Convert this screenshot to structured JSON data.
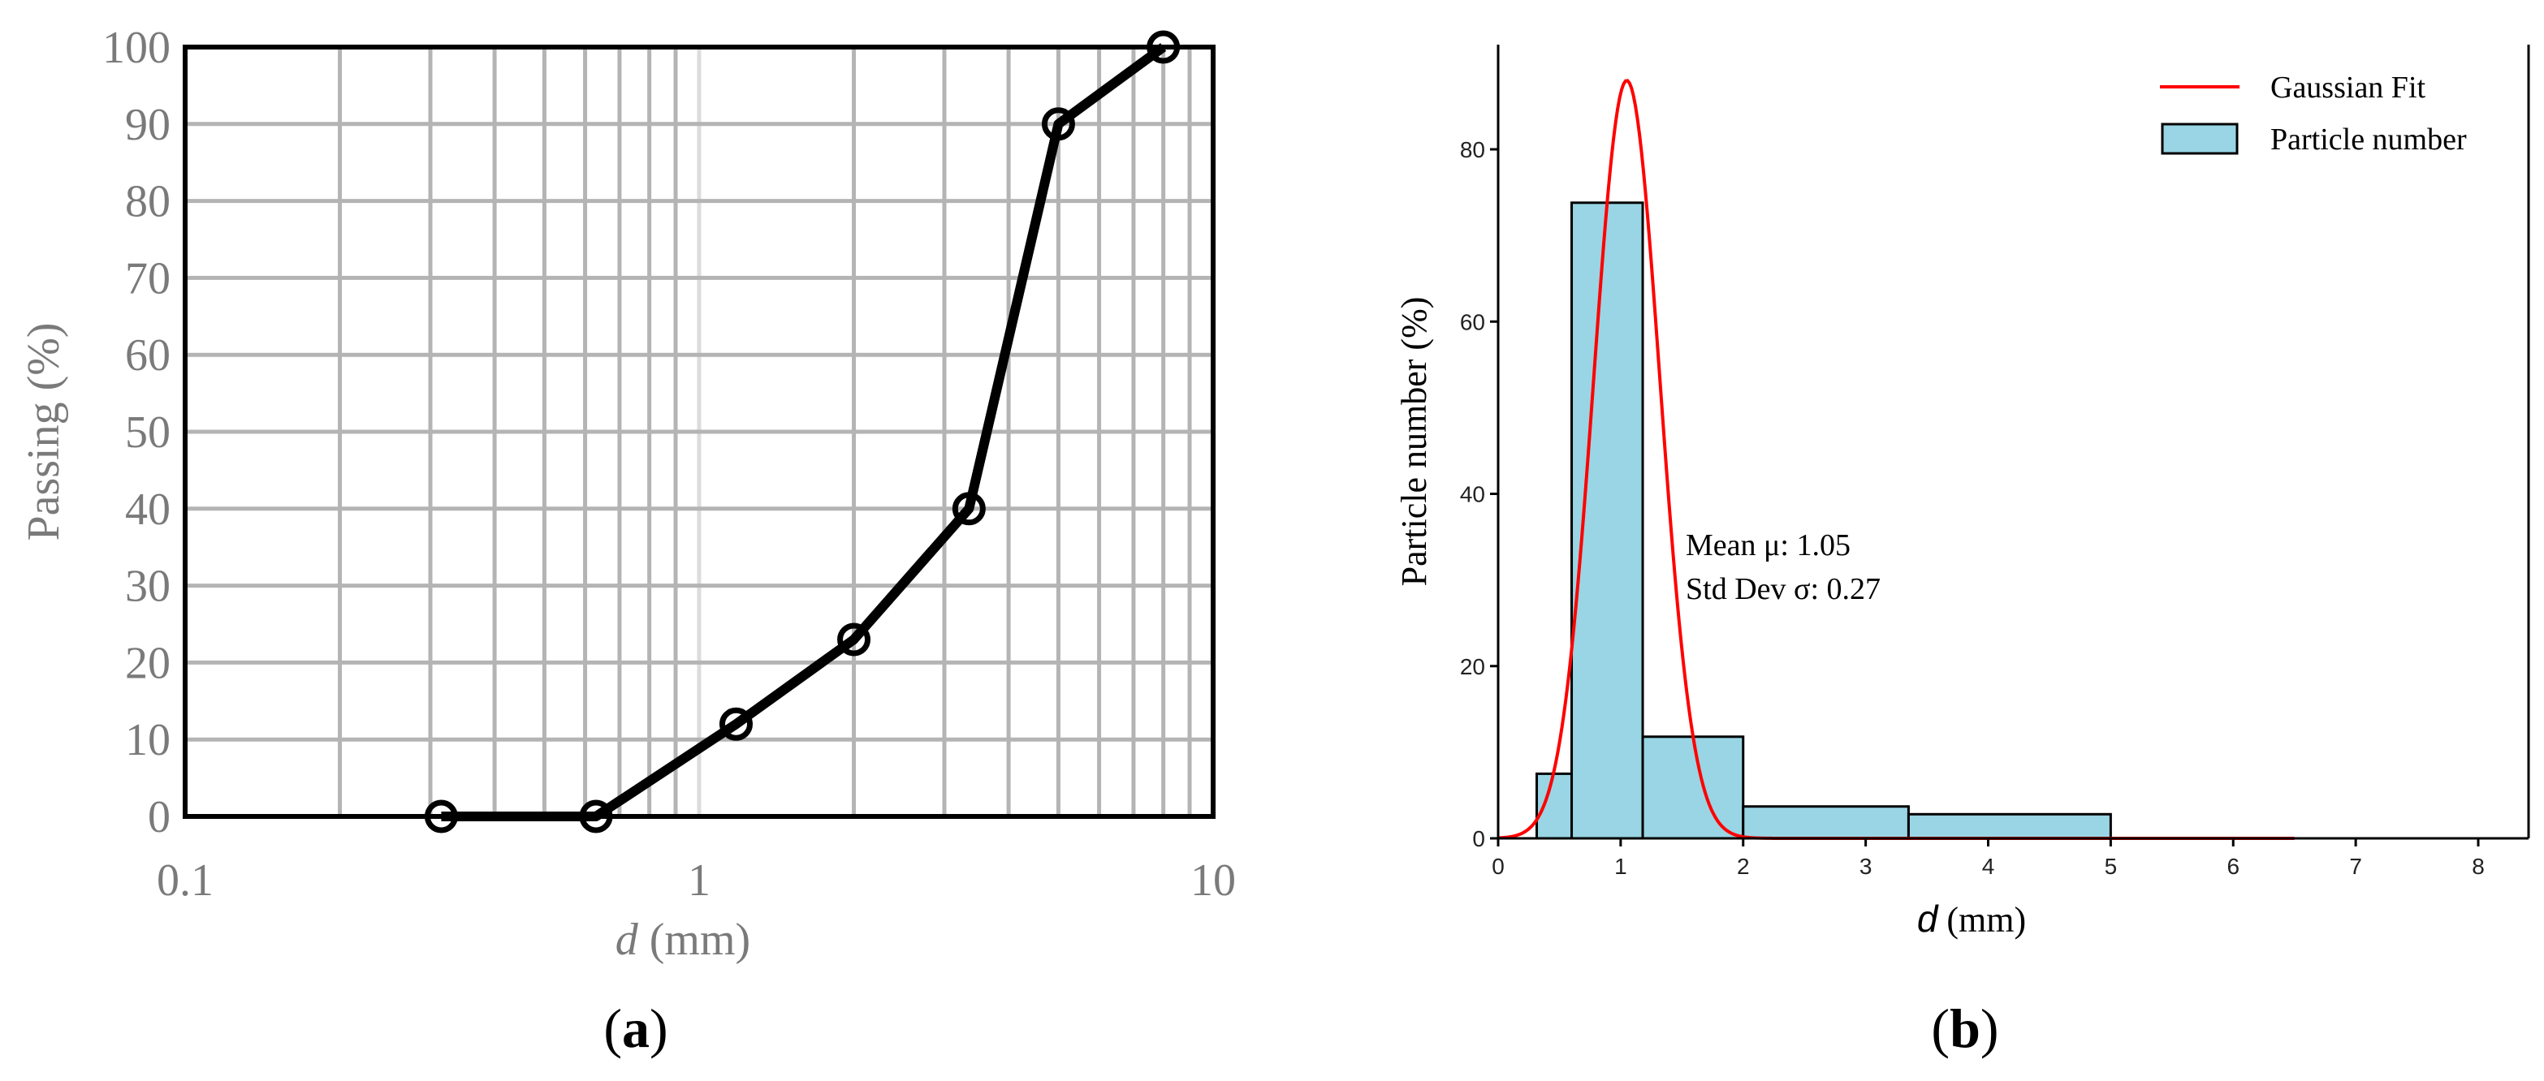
{
  "chart_data": [
    {
      "type": "line",
      "panel_label": "a",
      "xscale": "log",
      "xlim": [
        0.1,
        10
      ],
      "ylim": [
        0,
        100
      ],
      "xticks": [
        "0.1",
        "1",
        "10"
      ],
      "yticks": [
        "0",
        "10",
        "20",
        "30",
        "40",
        "50",
        "60",
        "70",
        "80",
        "90",
        "100"
      ],
      "xlabel_var": "d",
      "xlabel_unit": " (mm)",
      "ylabel": "Passing (%)",
      "grid": true,
      "series": [
        {
          "name": "Passing",
          "color": "#000000",
          "marker": "open-circle",
          "x": [
            0.315,
            0.63,
            1.18,
            2.0,
            3.35,
            5.0,
            8.0
          ],
          "y": [
            0,
            0,
            12,
            23,
            40,
            90,
            100
          ]
        }
      ]
    },
    {
      "type": "bar",
      "panel_label": "b",
      "xlim": [
        0,
        8.3
      ],
      "ylim": [
        0,
        90
      ],
      "xticks": [
        "0",
        "1",
        "2",
        "3",
        "4",
        "5",
        "6",
        "7",
        "8"
      ],
      "yticks": [
        "0",
        "20",
        "40",
        "60",
        "80"
      ],
      "xlabel_var": "d",
      "xlabel_unit": " (mm)",
      "ylabel": "Particle number (%)",
      "bins": [
        {
          "left": 0.315,
          "right": 0.6,
          "value": 7.5
        },
        {
          "left": 0.6,
          "right": 1.18,
          "value": 73.8
        },
        {
          "left": 1.18,
          "right": 2.0,
          "value": 11.8
        },
        {
          "left": 2.0,
          "right": 3.35,
          "value": 3.7
        },
        {
          "left": 3.35,
          "right": 5.0,
          "value": 2.8
        }
      ],
      "bar_color": "#99d5e4",
      "fit": {
        "name": "Gaussian Fit",
        "color": "#ff0000",
        "mean": 1.05,
        "std": 0.27,
        "peak": 88,
        "x_range": [
          0,
          6.5
        ]
      },
      "legend": [
        "Gaussian Fit",
        "Particle number"
      ],
      "legend_position": "top-right",
      "annotation": [
        "Mean μ: 1.05",
        "Std Dev σ: 0.27"
      ]
    }
  ]
}
